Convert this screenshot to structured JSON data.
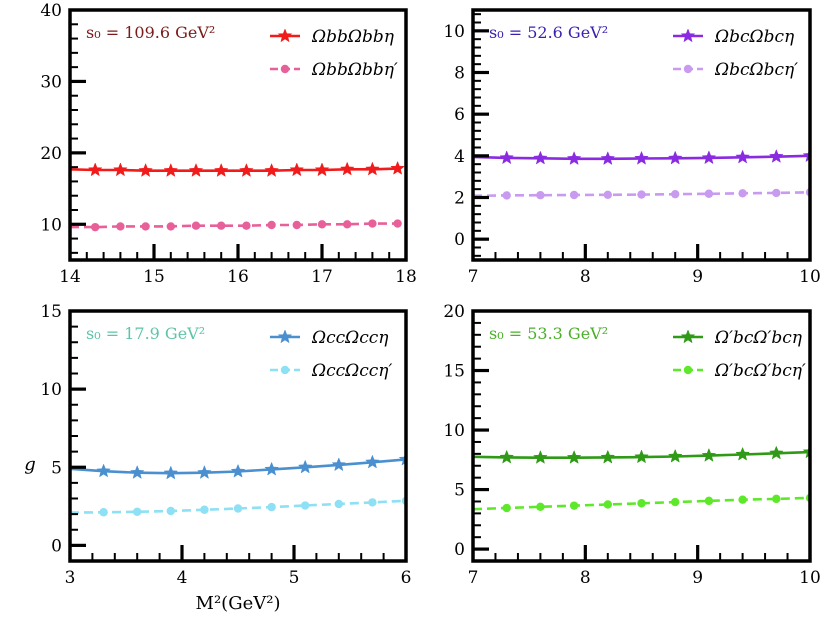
{
  "figure": {
    "ylabel": "g",
    "xlabel": "M²(GeV²)"
  },
  "chart_data": [
    {
      "type": "line",
      "panel": "top-left",
      "annotation": "s₀ = 109.6 GeV²",
      "annotation_color": "#7a1a1a",
      "xlim": [
        14,
        18
      ],
      "ylim": [
        5,
        40
      ],
      "xticks": [
        14,
        15,
        16,
        17,
        18
      ],
      "yticks": [
        10,
        20,
        30,
        40
      ],
      "legend_position": "top-right",
      "series": [
        {
          "name": "ΩbbΩbbη",
          "color": "#f21b1b",
          "marker": "star",
          "dash": "solid",
          "x": [
            14.0,
            14.3,
            14.6,
            14.9,
            15.2,
            15.5,
            15.8,
            16.1,
            16.4,
            16.7,
            17.0,
            17.3,
            17.6,
            17.9
          ],
          "y": [
            17.7,
            17.6,
            17.6,
            17.5,
            17.5,
            17.5,
            17.5,
            17.5,
            17.5,
            17.6,
            17.6,
            17.7,
            17.7,
            17.8
          ]
        },
        {
          "name": "ΩbbΩbbη′",
          "color": "#e8609a",
          "marker": "circle",
          "dash": "dashed",
          "x": [
            14.0,
            14.3,
            14.6,
            14.9,
            15.2,
            15.5,
            15.8,
            16.1,
            16.4,
            16.7,
            17.0,
            17.3,
            17.6,
            17.9
          ],
          "y": [
            9.6,
            9.6,
            9.7,
            9.7,
            9.7,
            9.8,
            9.8,
            9.8,
            9.9,
            9.9,
            10.0,
            10.0,
            10.1,
            10.1
          ]
        }
      ]
    },
    {
      "type": "line",
      "panel": "top-right",
      "annotation": "s₀ = 52.6 GeV²",
      "annotation_color": "#3a1fb0",
      "xlim": [
        7,
        10
      ],
      "ylim": [
        -1,
        11
      ],
      "xticks": [
        7,
        8,
        9,
        10
      ],
      "yticks": [
        0,
        2,
        4,
        6,
        8,
        10
      ],
      "legend_position": "top-right",
      "series": [
        {
          "name": "ΩbcΩbcη",
          "color": "#8a2be2",
          "marker": "star",
          "dash": "solid",
          "x": [
            7.0,
            7.3,
            7.6,
            7.9,
            8.2,
            8.5,
            8.8,
            9.1,
            9.4,
            9.7,
            10.0
          ],
          "y": [
            3.95,
            3.9,
            3.88,
            3.86,
            3.86,
            3.87,
            3.88,
            3.9,
            3.93,
            3.96,
            4.0
          ]
        },
        {
          "name": "ΩbcΩbcη′",
          "color": "#c89af0",
          "marker": "circle",
          "dash": "dashed",
          "x": [
            7.0,
            7.3,
            7.6,
            7.9,
            8.2,
            8.5,
            8.8,
            9.1,
            9.4,
            9.7,
            10.0
          ],
          "y": [
            2.08,
            2.1,
            2.11,
            2.12,
            2.13,
            2.14,
            2.16,
            2.18,
            2.2,
            2.22,
            2.25
          ]
        }
      ]
    },
    {
      "type": "line",
      "panel": "bottom-left",
      "annotation": "s₀ = 17.9 GeV²",
      "annotation_color": "#5ec4a8",
      "xlim": [
        3,
        6
      ],
      "ylim": [
        -1,
        15
      ],
      "xticks": [
        3,
        4,
        5,
        6
      ],
      "yticks": [
        0,
        5,
        10,
        15
      ],
      "legend_position": "top-right",
      "series": [
        {
          "name": "ΩccΩccη",
          "color": "#4a90d0",
          "marker": "star",
          "dash": "solid",
          "x": [
            3.0,
            3.3,
            3.6,
            3.9,
            4.2,
            4.5,
            4.8,
            5.1,
            5.4,
            5.7,
            6.0
          ],
          "y": [
            4.9,
            4.75,
            4.65,
            4.62,
            4.65,
            4.73,
            4.86,
            5.0,
            5.15,
            5.32,
            5.5
          ]
        },
        {
          "name": "ΩccΩccη′",
          "color": "#8ee0f5",
          "marker": "circle",
          "dash": "dashed",
          "x": [
            3.0,
            3.3,
            3.6,
            3.9,
            4.2,
            4.5,
            4.8,
            5.1,
            5.4,
            5.7,
            6.0
          ],
          "y": [
            2.1,
            2.12,
            2.15,
            2.2,
            2.28,
            2.36,
            2.45,
            2.55,
            2.65,
            2.75,
            2.85
          ]
        }
      ]
    },
    {
      "type": "line",
      "panel": "bottom-right",
      "annotation": "s₀ = 53.3 GeV²",
      "annotation_color": "#4caf2a",
      "xlim": [
        7,
        10
      ],
      "ylim": [
        -1,
        20
      ],
      "xticks": [
        7,
        8,
        9,
        10
      ],
      "yticks": [
        0,
        5,
        10,
        15,
        20
      ],
      "legend_position": "top-right",
      "series": [
        {
          "name": "Ω′bcΩ′bcη",
          "color": "#2e9a16",
          "marker": "star",
          "dash": "solid",
          "x": [
            7.0,
            7.3,
            7.6,
            7.9,
            8.2,
            8.5,
            8.8,
            9.1,
            9.4,
            9.7,
            10.0
          ],
          "y": [
            7.75,
            7.7,
            7.68,
            7.68,
            7.7,
            7.73,
            7.78,
            7.85,
            7.95,
            8.05,
            8.15
          ]
        },
        {
          "name": "Ω′bcΩ′bcη′",
          "color": "#5ee82a",
          "marker": "circle",
          "dash": "dashed",
          "x": [
            7.0,
            7.3,
            7.6,
            7.9,
            8.2,
            8.5,
            8.8,
            9.1,
            9.4,
            9.7,
            10.0
          ],
          "y": [
            3.35,
            3.45,
            3.55,
            3.65,
            3.75,
            3.85,
            3.95,
            4.05,
            4.15,
            4.22,
            4.3
          ]
        }
      ]
    }
  ]
}
